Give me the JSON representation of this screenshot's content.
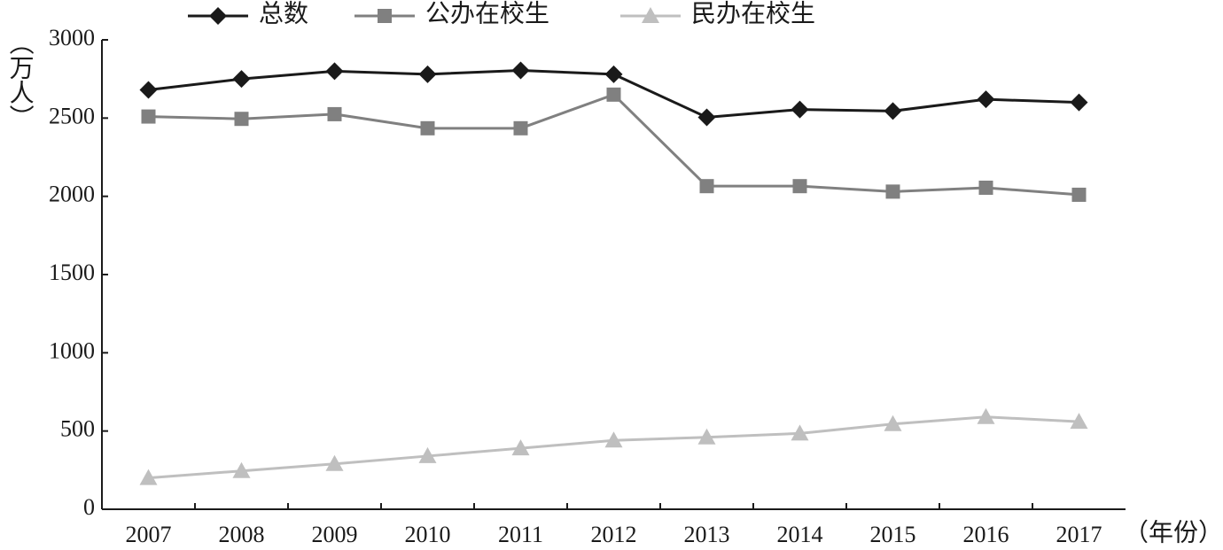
{
  "chart_data": {
    "type": "line",
    "y_label": "（万人）",
    "x_label": "（年份）",
    "categories": [
      "2007",
      "2008",
      "2009",
      "2010",
      "2011",
      "2012",
      "2013",
      "2014",
      "2015",
      "2016",
      "2017"
    ],
    "series": [
      {
        "name": "总数",
        "color": "#1a1a1a",
        "marker": "diamond",
        "values": [
          2680,
          2750,
          2800,
          2780,
          2805,
          2780,
          2505,
          2555,
          2545,
          2620,
          2600
        ]
      },
      {
        "name": "公办在校生",
        "color": "#808080",
        "marker": "square",
        "values": [
          2510,
          2495,
          2525,
          2435,
          2435,
          2650,
          2065,
          2065,
          2030,
          2055,
          2010
        ]
      },
      {
        "name": "民办在校生",
        "color": "#bfbfbf",
        "marker": "triangle",
        "values": [
          200,
          245,
          290,
          340,
          390,
          440,
          460,
          485,
          545,
          590,
          560
        ]
      }
    ],
    "ylim": [
      0,
      3000
    ],
    "yticks": [
      0,
      500,
      1000,
      1500,
      2000,
      2500,
      3000
    ],
    "legend": "top"
  }
}
